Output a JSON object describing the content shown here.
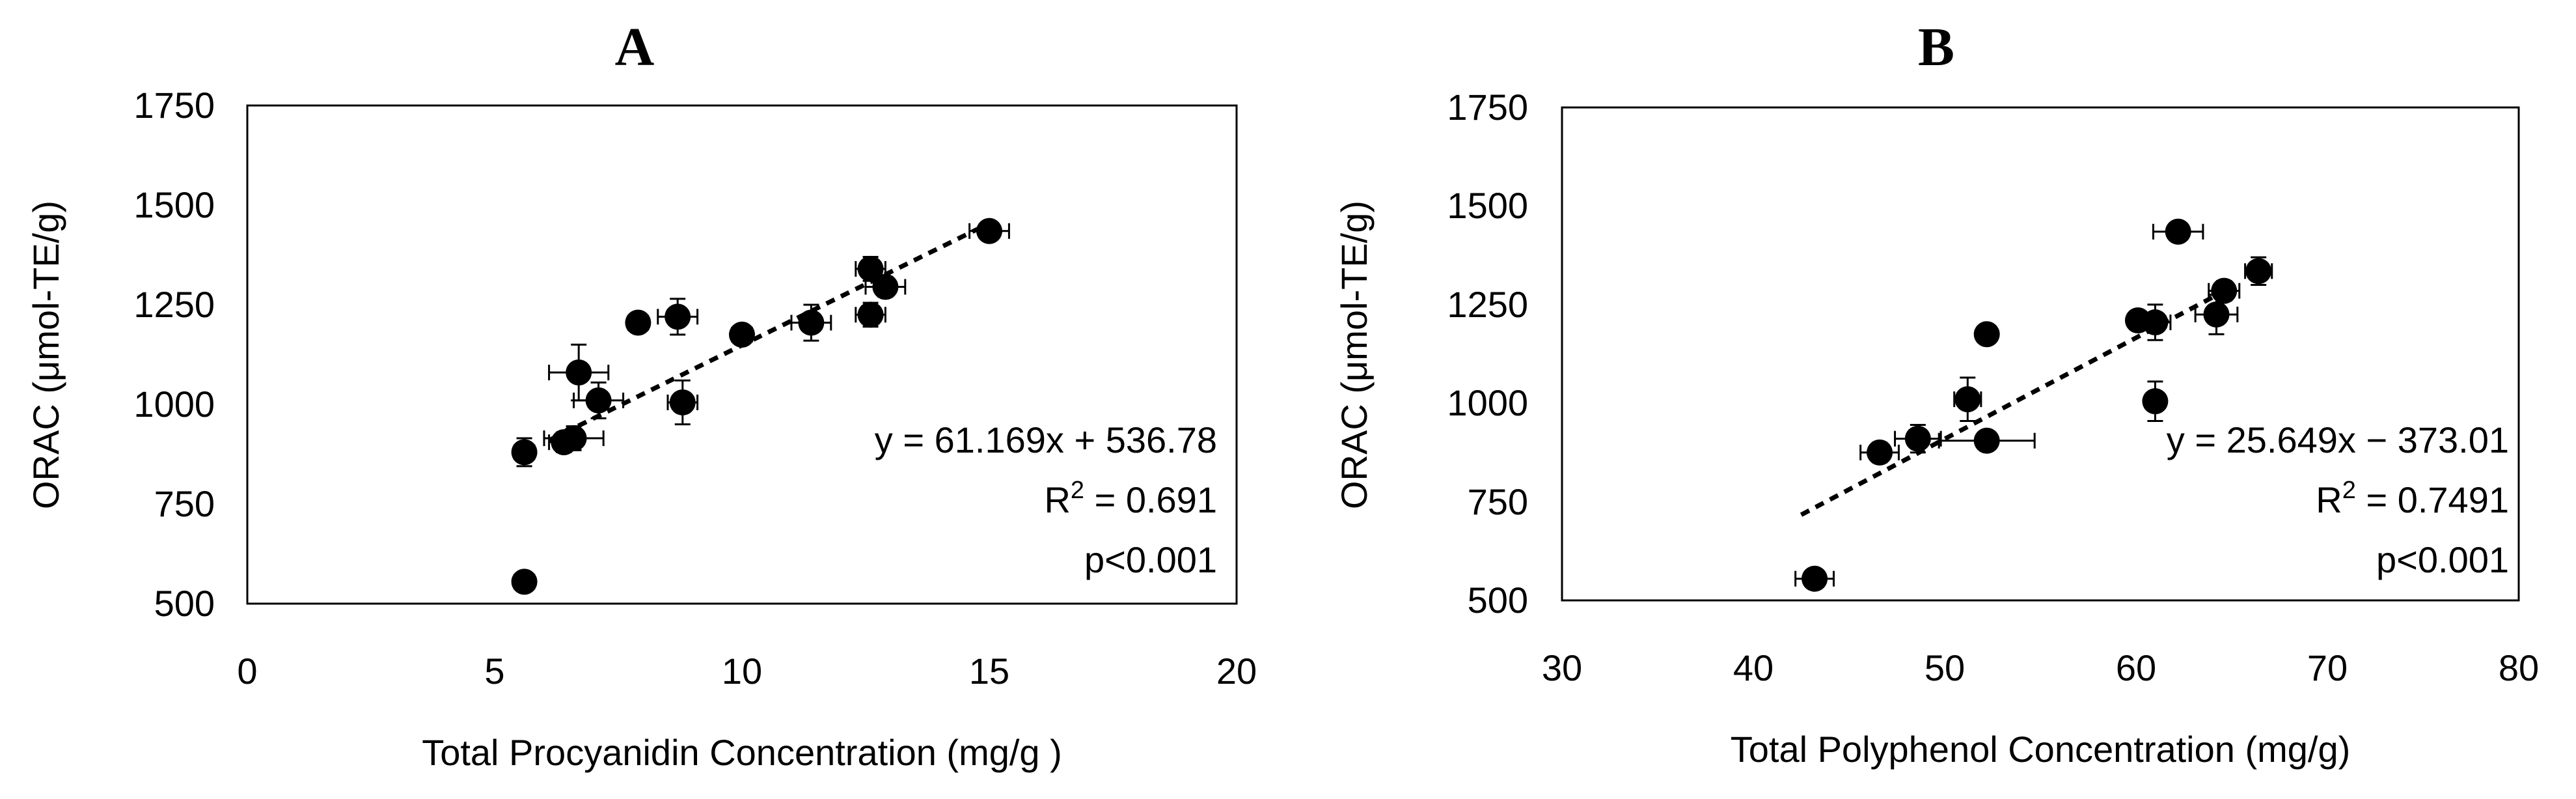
{
  "chart_data": [
    {
      "type": "scatter",
      "title": "A",
      "xlabel": "Total Procyanidin Concentration (mg/g )",
      "ylabel": "ORAC (μmol-TE/g)",
      "xlim": [
        0,
        20
      ],
      "ylim": [
        500,
        1750
      ],
      "xticks": [
        "0",
        "5",
        "10",
        "15",
        "20"
      ],
      "yticks": [
        "500",
        "750",
        "1000",
        "1250",
        "1500",
        "1750"
      ],
      "grid": false,
      "points": [
        {
          "x": 5.6,
          "y": 555,
          "xerr": 0.2,
          "yerr": 10
        },
        {
          "x": 5.6,
          "y": 880,
          "xerr": 0.2,
          "yerr": 35
        },
        {
          "x": 6.4,
          "y": 905,
          "xerr": 0.3,
          "yerr": 25
        },
        {
          "x": 6.6,
          "y": 915,
          "xerr": 0.6,
          "yerr": 30
        },
        {
          "x": 6.7,
          "y": 1080,
          "xerr": 0.6,
          "yerr": 70
        },
        {
          "x": 7.1,
          "y": 1010,
          "xerr": 0.5,
          "yerr": 45
        },
        {
          "x": 7.9,
          "y": 1205,
          "xerr": 0.2,
          "yerr": 15
        },
        {
          "x": 8.7,
          "y": 1220,
          "xerr": 0.4,
          "yerr": 45
        },
        {
          "x": 8.8,
          "y": 1005,
          "xerr": 0.3,
          "yerr": 55
        },
        {
          "x": 10.0,
          "y": 1175,
          "xerr": 0.2,
          "yerr": 15
        },
        {
          "x": 11.4,
          "y": 1205,
          "xerr": 0.4,
          "yerr": 45
        },
        {
          "x": 12.6,
          "y": 1340,
          "xerr": 0.3,
          "yerr": 30
        },
        {
          "x": 12.6,
          "y": 1225,
          "xerr": 0.3,
          "yerr": 30
        },
        {
          "x": 12.9,
          "y": 1295,
          "xerr": 0.4,
          "yerr": 25
        },
        {
          "x": 15.0,
          "y": 1435,
          "xerr": 0.4,
          "yerr": 15
        }
      ],
      "trendline": {
        "slope": 61.169,
        "intercept": 536.78,
        "x_range": [
          6.1,
          15.0
        ]
      },
      "annotations": {
        "equation": "y = 61.169x + 536.78",
        "r2_prefix": "R",
        "r2_sup": "2",
        "r2_value": " = 0.691",
        "p_text": "p<0.001"
      }
    },
    {
      "type": "scatter",
      "title": "B",
      "xlabel": "Total Polyphenol Concentration (mg/g)",
      "ylabel": "ORAC (μmol-TE/g)",
      "xlim": [
        30,
        80
      ],
      "ylim": [
        500,
        1750
      ],
      "xticks": [
        "30",
        "40",
        "50",
        "60",
        "70",
        "80"
      ],
      "yticks": [
        "500",
        "750",
        "1000",
        "1250",
        "1500",
        "1750"
      ],
      "grid": false,
      "points": [
        {
          "x": 43.2,
          "y": 555,
          "xerr": 1.0,
          "yerr": 10
        },
        {
          "x": 46.6,
          "y": 875,
          "xerr": 1.0,
          "yerr": 25
        },
        {
          "x": 48.6,
          "y": 910,
          "xerr": 1.2,
          "yerr": 35
        },
        {
          "x": 51.2,
          "y": 1010,
          "xerr": 0.7,
          "yerr": 55
        },
        {
          "x": 52.2,
          "y": 1175,
          "xerr": 0.4,
          "yerr": 15
        },
        {
          "x": 52.2,
          "y": 905,
          "xerr": 2.5,
          "yerr": 15
        },
        {
          "x": 60.1,
          "y": 1210,
          "xerr": 0.4,
          "yerr": 15
        },
        {
          "x": 61.0,
          "y": 1205,
          "xerr": 0.8,
          "yerr": 45
        },
        {
          "x": 61.0,
          "y": 1005,
          "xerr": 0.5,
          "yerr": 50
        },
        {
          "x": 62.2,
          "y": 1435,
          "xerr": 1.3,
          "yerr": 15
        },
        {
          "x": 64.2,
          "y": 1225,
          "xerr": 1.1,
          "yerr": 50
        },
        {
          "x": 64.6,
          "y": 1285,
          "xerr": 0.8,
          "yerr": 25
        },
        {
          "x": 66.4,
          "y": 1335,
          "xerr": 0.7,
          "yerr": 35
        }
      ],
      "trendline": {
        "slope": 25.649,
        "intercept": -373.01,
        "x_range": [
          42.5,
          65.0
        ]
      },
      "annotations": {
        "equation": "y = 25.649x − 373.01",
        "r2_prefix": "R",
        "r2_sup": "2",
        "r2_value": " = 0.7491",
        "p_text": "p<0.001"
      }
    }
  ]
}
